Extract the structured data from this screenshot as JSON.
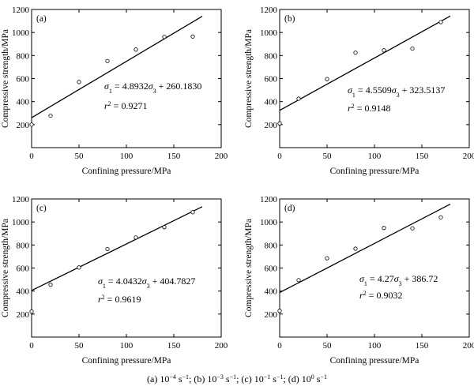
{
  "caption": {
    "text": "(a) 10",
    "parts": [
      {
        "t": "(a) 10",
        "sup": "−4",
        "tail": " s",
        "sup2": "−1",
        "sep": "; "
      },
      {
        "t": "(b) 10",
        "sup": "−3",
        "tail": " s",
        "sup2": "−1",
        "sep": "; "
      },
      {
        "t": "(c) 10",
        "sup": "−1",
        "tail": " s",
        "sup2": "−1",
        "sep": "; "
      },
      {
        "t": "(d) 10",
        "sup": "0",
        "tail": " s",
        "sup2": "−1",
        "sep": ""
      }
    ]
  },
  "chart_data": [
    {
      "type": "scatter",
      "panel_label": "(a)",
      "xlabel": "Confining pressure/MPa",
      "ylabel": "Compressive strength/MPa",
      "xlim": [
        0,
        200
      ],
      "ylim": [
        0,
        1200
      ],
      "xticks": [
        "0",
        "50",
        "100",
        "150",
        "200"
      ],
      "yticks": [
        "200",
        "400",
        "600",
        "800",
        "1000",
        "1200"
      ],
      "points": [
        [
          0,
          200
        ],
        [
          20,
          278
        ],
        [
          50,
          570
        ],
        [
          80,
          752
        ],
        [
          110,
          852
        ],
        [
          140,
          962
        ],
        [
          170,
          965
        ]
      ],
      "fit": {
        "slope": 4.8932,
        "intercept": 260.183,
        "x_range": [
          0,
          180
        ]
      },
      "equation": {
        "sym": "σ",
        "sub1": "1",
        "mid": " = 4.8932",
        "sub3": "3",
        "tail": " + 260.1830"
      },
      "r2": {
        "r": "r",
        "sup": "2",
        "value": " = 0.9271"
      }
    },
    {
      "type": "scatter",
      "panel_label": "(b)",
      "xlabel": "Confining pressure/MPa",
      "ylabel": "Compressive strength/MPa",
      "xlim": [
        0,
        200
      ],
      "ylim": [
        0,
        1200
      ],
      "xticks": [
        "0",
        "50",
        "100",
        "150",
        "200"
      ],
      "yticks": [
        "200",
        "400",
        "600",
        "800",
        "1000",
        "1200"
      ],
      "points": [
        [
          0,
          210
        ],
        [
          20,
          425
        ],
        [
          50,
          595
        ],
        [
          80,
          825
        ],
        [
          110,
          845
        ],
        [
          140,
          860
        ],
        [
          170,
          1090
        ]
      ],
      "fit": {
        "slope": 4.5509,
        "intercept": 323.5137,
        "x_range": [
          0,
          180
        ]
      },
      "equation": {
        "sym": "σ",
        "sub1": "1",
        "mid": " = 4.5509",
        "sub3": "3",
        "tail": " + 323.5137"
      },
      "r2": {
        "r": "r",
        "sup": "2",
        "value": " = 0.9148"
      }
    },
    {
      "type": "scatter",
      "panel_label": "(c)",
      "xlabel": "Confining pressure/MPa",
      "ylabel": "Compressive strength/MPa",
      "xlim": [
        0,
        200
      ],
      "ylim": [
        0,
        1200
      ],
      "xticks": [
        "0",
        "50",
        "100",
        "150",
        "200"
      ],
      "yticks": [
        "200",
        "400",
        "600",
        "800",
        "1000",
        "1200"
      ],
      "points": [
        [
          0,
          222
        ],
        [
          20,
          455
        ],
        [
          50,
          605
        ],
        [
          80,
          765
        ],
        [
          110,
          865
        ],
        [
          140,
          955
        ],
        [
          170,
          1085
        ]
      ],
      "fit": {
        "slope": 4.0432,
        "intercept": 404.7827,
        "x_range": [
          0,
          180
        ]
      },
      "equation": {
        "sym": "σ",
        "sub1": "1",
        "mid": " = 4.0432",
        "sub3": "3",
        "tail": " + 404.7827"
      },
      "r2": {
        "r": "r",
        "sup": "2",
        "value": " = 0.9619"
      }
    },
    {
      "type": "scatter",
      "panel_label": "(d)",
      "xlabel": "Confining pressure/MPa",
      "ylabel": "Compressive strength/MPa",
      "xlim": [
        0,
        200
      ],
      "ylim": [
        0,
        1200
      ],
      "xticks": [
        "0",
        "50",
        "100",
        "150",
        "200"
      ],
      "yticks": [
        "200",
        "400",
        "600",
        "800",
        "1000",
        "1200"
      ],
      "points": [
        [
          0,
          228
        ],
        [
          20,
          495
        ],
        [
          50,
          685
        ],
        [
          80,
          768
        ],
        [
          110,
          948
        ],
        [
          140,
          945
        ],
        [
          170,
          1040
        ]
      ],
      "fit": {
        "slope": 4.27,
        "intercept": 386.72,
        "x_range": [
          0,
          180
        ]
      },
      "equation": {
        "sym": "σ",
        "sub1": "1",
        "mid": " = 4.27",
        "sub3": "3",
        "tail": " + 386.72"
      },
      "r2": {
        "r": "r",
        "sup": "2",
        "value": " = 0.9032"
      }
    }
  ]
}
